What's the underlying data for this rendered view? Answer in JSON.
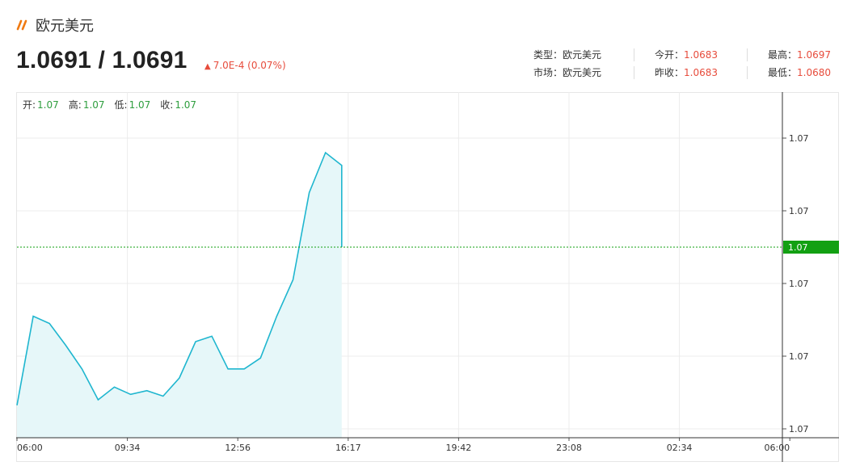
{
  "header": {
    "title": "欧元美元",
    "price": "1.0691 / 1.0691",
    "change": "7.0E-4 (0.07%)"
  },
  "stats": {
    "type_label": "类型：",
    "type_value": "欧元美元",
    "market_label": "市场：",
    "market_value": "欧元美元",
    "open_label": "今开：",
    "open_value": "1.0683",
    "prev_close_label": "昨收：",
    "prev_close_value": "1.0683",
    "high_label": "最高：",
    "high_value": "1.0697",
    "low_label": "最低：",
    "low_value": "1.0680"
  },
  "ohlc": {
    "open_label": "开:",
    "open_value": "1.07",
    "high_label": "高:",
    "high_value": "1.07",
    "low_label": "低:",
    "low_value": "1.07",
    "close_label": "收:",
    "close_value": "1.07"
  },
  "colors": {
    "line": "#1fb6cf",
    "area": "#e6f7f9",
    "up": "#e74c3c",
    "ohlc_value": "#2e9e3e",
    "current_tag": "#12a012",
    "grid": "#ececec"
  },
  "chart_data": {
    "type": "area",
    "x_ticks": [
      "06:00",
      "09:34",
      "12:56",
      "16:17",
      "19:42",
      "23:08",
      "02:34",
      "06:00"
    ],
    "y_ticks": [
      "1.07",
      "1.07",
      "1.07",
      "1.07",
      "1.07"
    ],
    "y_tick_values": [
      1.0681,
      1.0685,
      1.0689,
      1.0693,
      1.0697
    ],
    "ylim": [
      1.0681,
      1.0697
    ],
    "current_value": 1.0691,
    "current_label": "1.07",
    "x": [
      "06:00",
      "06:30",
      "07:00",
      "07:30",
      "08:00",
      "08:30",
      "09:00",
      "09:34",
      "10:00",
      "10:30",
      "11:00",
      "11:30",
      "12:00",
      "12:30",
      "12:56",
      "13:30",
      "14:00",
      "14:30",
      "15:00",
      "15:30",
      "16:00",
      "16:17"
    ],
    "values": [
      1.06823,
      1.06872,
      1.06868,
      1.06856,
      1.06843,
      1.06826,
      1.06833,
      1.06829,
      1.06831,
      1.06828,
      1.06838,
      1.06858,
      1.06861,
      1.06843,
      1.06843,
      1.06849,
      1.06872,
      1.06892,
      1.0694,
      1.06962,
      1.06955,
      1.0691
    ]
  }
}
